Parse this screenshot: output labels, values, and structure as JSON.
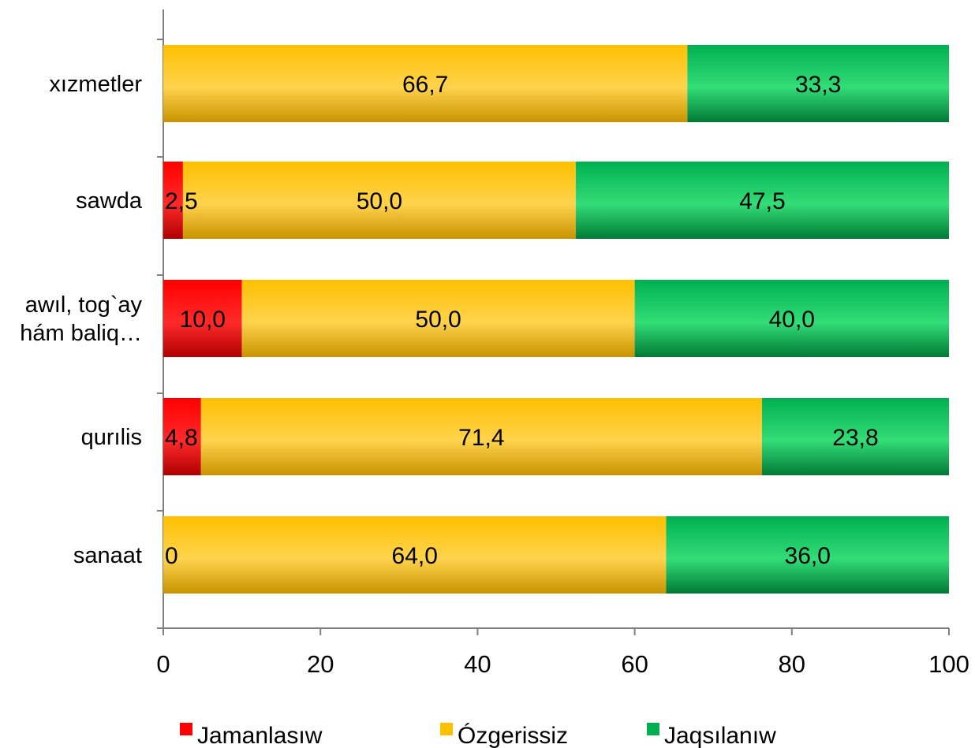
{
  "chart_data": {
    "type": "bar",
    "orientation": "horizontal",
    "stacked": true,
    "title": "",
    "xlabel": "",
    "ylabel": "",
    "xlim": [
      0,
      100
    ],
    "xticks": [
      0,
      20,
      40,
      60,
      80,
      100
    ],
    "xtick_labels": [
      "0",
      "20",
      "40",
      "60",
      "80",
      "100"
    ],
    "grid": false,
    "legend_position": "bottom",
    "categories": [
      "xızmetler",
      "sawda",
      "awıl, tog`ay|hám baliq…",
      "qurılis",
      "sanaat"
    ],
    "series": [
      {
        "name": "Jamanlasıw",
        "color": "#ff0000",
        "values": [
          0,
          2.5,
          10.0,
          4.8,
          0
        ],
        "labels": [
          "",
          "2,5",
          "10,0",
          "4,8",
          "0"
        ]
      },
      {
        "name": "Ózgerissiz",
        "color": "#ffc000",
        "values": [
          66.7,
          50.0,
          50.0,
          71.4,
          64.0
        ],
        "labels": [
          "66,7",
          "50,0",
          "50,0",
          "71,4",
          "64,0"
        ]
      },
      {
        "name": "Jaqsılanıw",
        "color": "#00b050",
        "values": [
          33.3,
          47.5,
          40.0,
          23.8,
          36.0
        ],
        "labels": [
          "33,3",
          "47,5",
          "40,0",
          "23,8",
          "36,0"
        ]
      }
    ]
  }
}
